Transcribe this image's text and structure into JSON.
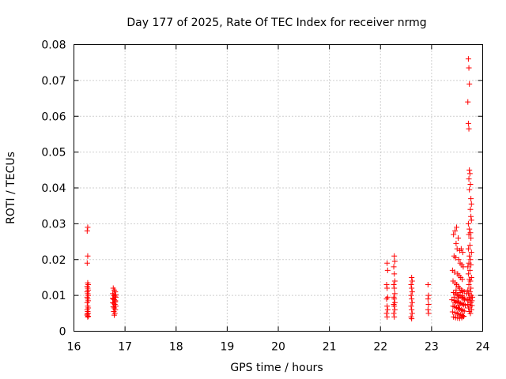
{
  "chart_data": {
    "type": "scatter",
    "title": "Day 177 of 2025, Rate Of TEC Index for receiver nrmg",
    "xlabel": "GPS time / hours",
    "ylabel": "ROTI / TECUs",
    "xlim": [
      16,
      24
    ],
    "ylim": [
      0,
      0.08
    ],
    "xticks": [
      16,
      17,
      18,
      19,
      20,
      21,
      22,
      23,
      24
    ],
    "yticks": [
      0,
      0.01,
      0.02,
      0.03,
      0.04,
      0.05,
      0.06,
      0.07,
      0.08
    ],
    "xtick_labels": [
      "16",
      "17",
      "18",
      "19",
      "20",
      "21",
      "22",
      "23",
      "24"
    ],
    "ytick_labels": [
      "0",
      "0.01",
      "0.02",
      "0.03",
      "0.04",
      "0.05",
      "0.06",
      "0.07",
      "0.08"
    ],
    "grid": true,
    "marker": "+",
    "color": "#ff0000",
    "series": [
      {
        "name": "ROTI",
        "points": [
          [
            16.27,
            0.029
          ],
          [
            16.26,
            0.028
          ],
          [
            16.27,
            0.021
          ],
          [
            16.26,
            0.019
          ],
          [
            16.27,
            0.0135
          ],
          [
            16.28,
            0.013
          ],
          [
            16.26,
            0.0125
          ],
          [
            16.27,
            0.012
          ],
          [
            16.28,
            0.0115
          ],
          [
            16.26,
            0.011
          ],
          [
            16.27,
            0.0105
          ],
          [
            16.28,
            0.01
          ],
          [
            16.26,
            0.0095
          ],
          [
            16.27,
            0.009
          ],
          [
            16.28,
            0.0085
          ],
          [
            16.26,
            0.008
          ],
          [
            16.27,
            0.007
          ],
          [
            16.28,
            0.0065
          ],
          [
            16.26,
            0.006
          ],
          [
            16.27,
            0.0055
          ],
          [
            16.28,
            0.005
          ],
          [
            16.26,
            0.0045
          ],
          [
            16.27,
            0.004
          ],
          [
            16.28,
            0.0042
          ],
          [
            16.26,
            0.0048
          ],
          [
            16.77,
            0.012
          ],
          [
            16.79,
            0.0115
          ],
          [
            16.81,
            0.011
          ],
          [
            16.76,
            0.0105
          ],
          [
            16.78,
            0.01
          ],
          [
            16.8,
            0.0098
          ],
          [
            16.82,
            0.0095
          ],
          [
            16.77,
            0.009
          ],
          [
            16.79,
            0.0088
          ],
          [
            16.81,
            0.0085
          ],
          [
            16.76,
            0.008
          ],
          [
            16.78,
            0.0078
          ],
          [
            16.8,
            0.0075
          ],
          [
            16.82,
            0.007
          ],
          [
            16.77,
            0.0068
          ],
          [
            16.79,
            0.0065
          ],
          [
            16.81,
            0.006
          ],
          [
            16.78,
            0.0055
          ],
          [
            16.8,
            0.005
          ],
          [
            16.79,
            0.0045
          ],
          [
            16.81,
            0.0082
          ],
          [
            16.76,
            0.0092
          ],
          [
            16.82,
            0.0102
          ],
          [
            22.13,
            0.019
          ],
          [
            22.14,
            0.017
          ],
          [
            22.12,
            0.013
          ],
          [
            22.13,
            0.012
          ],
          [
            22.14,
            0.0095
          ],
          [
            22.12,
            0.009
          ],
          [
            22.13,
            0.007
          ],
          [
            22.14,
            0.006
          ],
          [
            22.12,
            0.005
          ],
          [
            22.13,
            0.004
          ],
          [
            22.27,
            0.021
          ],
          [
            22.28,
            0.0195
          ],
          [
            22.26,
            0.018
          ],
          [
            22.27,
            0.016
          ],
          [
            22.28,
            0.014
          ],
          [
            22.26,
            0.013
          ],
          [
            22.27,
            0.012
          ],
          [
            22.28,
            0.0105
          ],
          [
            22.26,
            0.0095
          ],
          [
            22.27,
            0.009
          ],
          [
            22.28,
            0.008
          ],
          [
            22.26,
            0.0075
          ],
          [
            22.27,
            0.007
          ],
          [
            22.28,
            0.006
          ],
          [
            22.26,
            0.005
          ],
          [
            22.27,
            0.004
          ],
          [
            22.61,
            0.015
          ],
          [
            22.62,
            0.014
          ],
          [
            22.6,
            0.013
          ],
          [
            22.61,
            0.012
          ],
          [
            22.62,
            0.011
          ],
          [
            22.6,
            0.01
          ],
          [
            22.61,
            0.009
          ],
          [
            22.62,
            0.008
          ],
          [
            22.6,
            0.007
          ],
          [
            22.61,
            0.006
          ],
          [
            22.62,
            0.005
          ],
          [
            22.6,
            0.004
          ],
          [
            22.61,
            0.0035
          ],
          [
            22.93,
            0.013
          ],
          [
            22.94,
            0.01
          ],
          [
            22.93,
            0.009
          ],
          [
            22.94,
            0.0075
          ],
          [
            22.93,
            0.006
          ],
          [
            22.94,
            0.005
          ],
          [
            23.72,
            0.076
          ],
          [
            23.73,
            0.0735
          ],
          [
            23.74,
            0.069
          ],
          [
            23.71,
            0.064
          ],
          [
            23.72,
            0.058
          ],
          [
            23.73,
            0.0565
          ],
          [
            23.74,
            0.045
          ],
          [
            23.75,
            0.044
          ],
          [
            23.73,
            0.0425
          ],
          [
            23.76,
            0.041
          ],
          [
            23.74,
            0.0395
          ],
          [
            23.77,
            0.037
          ],
          [
            23.78,
            0.0355
          ],
          [
            23.76,
            0.034
          ],
          [
            23.77,
            0.032
          ],
          [
            23.78,
            0.031
          ],
          [
            23.72,
            0.03
          ],
          [
            23.74,
            0.0285
          ],
          [
            23.76,
            0.0275
          ],
          [
            23.73,
            0.027
          ],
          [
            23.77,
            0.026
          ],
          [
            23.75,
            0.024
          ],
          [
            23.72,
            0.023
          ],
          [
            23.78,
            0.022
          ],
          [
            23.74,
            0.021
          ],
          [
            23.76,
            0.02
          ],
          [
            23.73,
            0.019
          ],
          [
            23.77,
            0.0185
          ],
          [
            23.71,
            0.018
          ],
          [
            23.75,
            0.017
          ],
          [
            23.72,
            0.016
          ],
          [
            23.78,
            0.015
          ],
          [
            23.74,
            0.0145
          ],
          [
            23.76,
            0.014
          ],
          [
            23.73,
            0.013
          ],
          [
            23.77,
            0.012
          ],
          [
            23.71,
            0.0115
          ],
          [
            23.75,
            0.011
          ],
          [
            23.72,
            0.0105
          ],
          [
            23.78,
            0.01
          ],
          [
            23.74,
            0.0095
          ],
          [
            23.76,
            0.009
          ],
          [
            23.73,
            0.0085
          ],
          [
            23.77,
            0.008
          ],
          [
            23.71,
            0.0075
          ],
          [
            23.75,
            0.007
          ],
          [
            23.72,
            0.0065
          ],
          [
            23.78,
            0.006
          ],
          [
            23.74,
            0.0055
          ],
          [
            23.76,
            0.005
          ],
          [
            23.79,
            0.0085
          ],
          [
            23.8,
            0.0095
          ],
          [
            23.69,
            0.0105
          ],
          [
            23.7,
            0.0088
          ],
          [
            23.79,
            0.0072
          ],
          [
            23.43,
            0.027
          ],
          [
            23.46,
            0.028
          ],
          [
            23.49,
            0.029
          ],
          [
            23.52,
            0.026
          ],
          [
            23.48,
            0.0245
          ],
          [
            23.5,
            0.023
          ],
          [
            23.55,
            0.0225
          ],
          [
            23.58,
            0.023
          ],
          [
            23.61,
            0.022
          ],
          [
            23.44,
            0.021
          ],
          [
            23.47,
            0.0205
          ],
          [
            23.53,
            0.02
          ],
          [
            23.56,
            0.019
          ],
          [
            23.59,
            0.0185
          ],
          [
            23.62,
            0.018
          ],
          [
            23.41,
            0.017
          ],
          [
            23.45,
            0.0165
          ],
          [
            23.51,
            0.016
          ],
          [
            23.54,
            0.0155
          ],
          [
            23.57,
            0.015
          ],
          [
            23.6,
            0.0145
          ],
          [
            23.42,
            0.014
          ],
          [
            23.46,
            0.0135
          ],
          [
            23.49,
            0.013
          ],
          [
            23.52,
            0.0125
          ],
          [
            23.55,
            0.012
          ],
          [
            23.58,
            0.0115
          ],
          [
            23.61,
            0.0112
          ],
          [
            23.64,
            0.011
          ],
          [
            23.43,
            0.0108
          ],
          [
            23.47,
            0.0105
          ],
          [
            23.5,
            0.0102
          ],
          [
            23.53,
            0.01
          ],
          [
            23.56,
            0.0098
          ],
          [
            23.59,
            0.0095
          ],
          [
            23.62,
            0.0093
          ],
          [
            23.65,
            0.009
          ],
          [
            23.4,
            0.0088
          ],
          [
            23.44,
            0.0086
          ],
          [
            23.48,
            0.0084
          ],
          [
            23.51,
            0.0082
          ],
          [
            23.54,
            0.008
          ],
          [
            23.57,
            0.0078
          ],
          [
            23.6,
            0.0076
          ],
          [
            23.63,
            0.0074
          ],
          [
            23.66,
            0.0072
          ],
          [
            23.42,
            0.007
          ],
          [
            23.45,
            0.0068
          ],
          [
            23.49,
            0.0066
          ],
          [
            23.52,
            0.0064
          ],
          [
            23.55,
            0.0062
          ],
          [
            23.58,
            0.006
          ],
          [
            23.61,
            0.0058
          ],
          [
            23.64,
            0.0056
          ],
          [
            23.41,
            0.0054
          ],
          [
            23.46,
            0.0052
          ],
          [
            23.5,
            0.005
          ],
          [
            23.53,
            0.0048
          ],
          [
            23.57,
            0.0046
          ],
          [
            23.6,
            0.0044
          ],
          [
            23.63,
            0.0042
          ],
          [
            23.43,
            0.004
          ],
          [
            23.47,
            0.0038
          ],
          [
            23.51,
            0.0037
          ],
          [
            23.55,
            0.0036
          ],
          [
            23.59,
            0.0038
          ],
          [
            23.62,
            0.0041
          ],
          [
            23.44,
            0.0095
          ],
          [
            23.48,
            0.0115
          ],
          [
            23.52,
            0.0092
          ],
          [
            23.56,
            0.0108
          ],
          [
            23.6,
            0.0099
          ],
          [
            23.64,
            0.0087
          ],
          [
            23.46,
            0.0079
          ],
          [
            23.54,
            0.0073
          ]
        ]
      }
    ]
  }
}
